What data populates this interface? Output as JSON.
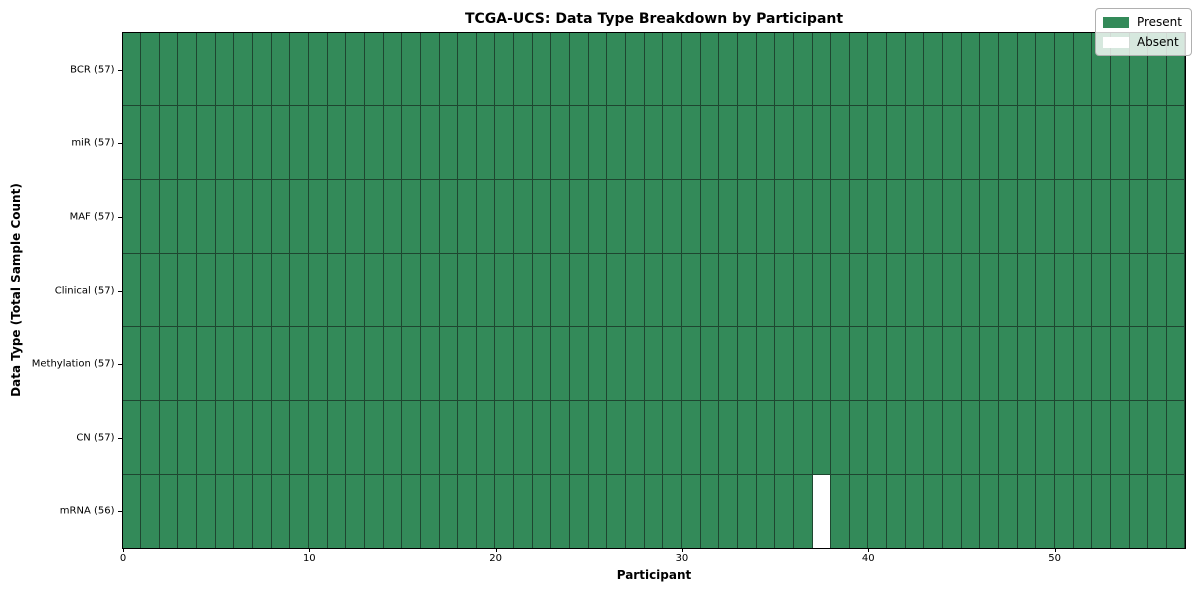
{
  "chart_data": {
    "type": "heatmap",
    "title": "TCGA-UCS: Data Type Breakdown by Participant",
    "xlabel": "Participant",
    "ylabel": "Data Type (Total Sample Count)",
    "n_participants": 57,
    "x_range": [
      0,
      57
    ],
    "x_ticks": [
      0,
      10,
      20,
      30,
      40,
      50
    ],
    "rows": [
      {
        "label": "BCR (57)",
        "data_type": "BCR",
        "present_count": 57,
        "absent_participants": []
      },
      {
        "label": "miR (57)",
        "data_type": "miR",
        "present_count": 57,
        "absent_participants": []
      },
      {
        "label": "MAF (57)",
        "data_type": "MAF",
        "present_count": 57,
        "absent_participants": []
      },
      {
        "label": "Clinical (57)",
        "data_type": "Clinical",
        "present_count": 57,
        "absent_participants": []
      },
      {
        "label": "Methylation (57)",
        "data_type": "Methylation",
        "present_count": 57,
        "absent_participants": []
      },
      {
        "label": "CN (57)",
        "data_type": "CN",
        "present_count": 57,
        "absent_participants": []
      },
      {
        "label": "mRNA (56)",
        "data_type": "mRNA",
        "present_count": 56,
        "absent_participants": [
          37
        ]
      }
    ],
    "legend": [
      {
        "label": "Present",
        "color": "#338a59"
      },
      {
        "label": "Absent",
        "color": "#ffffff"
      }
    ],
    "legend_position": "upper right",
    "grid": true,
    "colors": {
      "present": "#338a59",
      "absent": "#ffffff",
      "cell_edge": "#1e4630",
      "plot_border": "#000000",
      "background": "#ffffff"
    }
  }
}
